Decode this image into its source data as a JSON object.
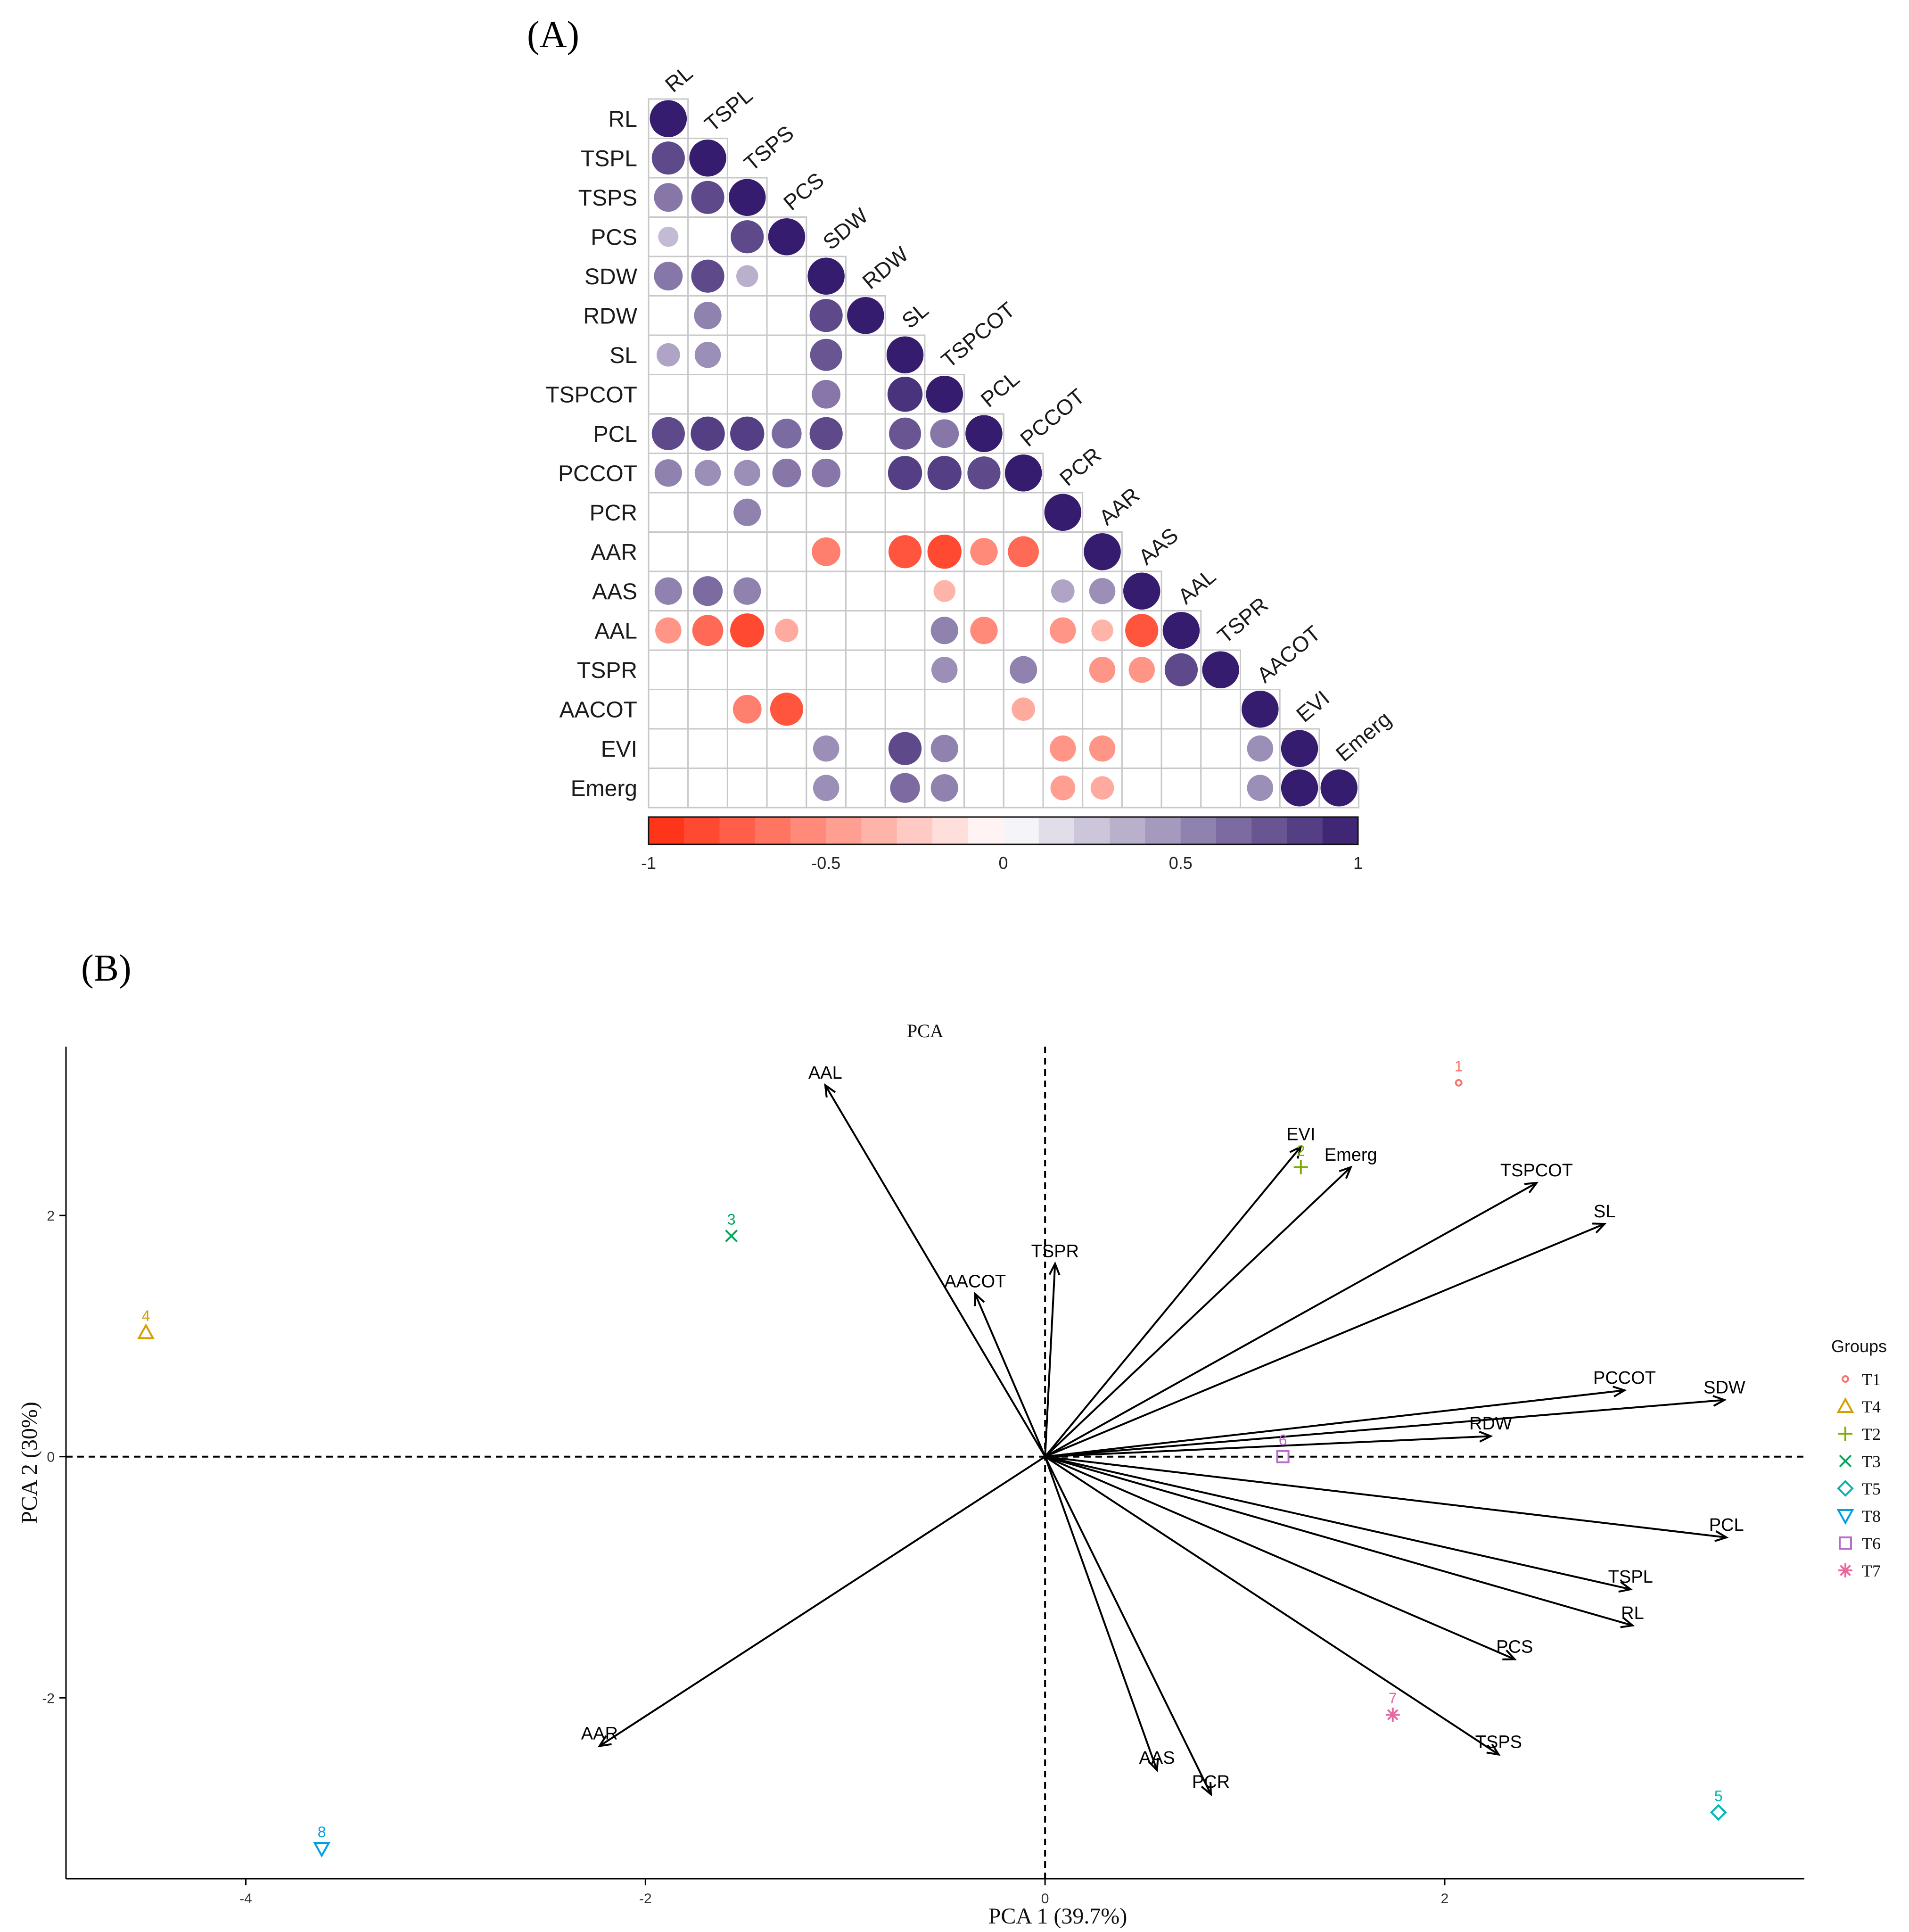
{
  "panels": {
    "a_label": "(A)",
    "b_label": "(B)"
  },
  "chart_data": [
    {
      "type": "heatmap",
      "variables": [
        "RL",
        "TSPL",
        "TSPS",
        "PCS",
        "SDW",
        "RDW",
        "SL",
        "TSPCOT",
        "PCL",
        "PCCOT",
        "PCR",
        "AAR",
        "AAS",
        "AAL",
        "TSPR",
        "AACOT",
        "EVI",
        "Emerg"
      ],
      "matrix": [
        [
          1
        ],
        [
          0.8,
          1
        ],
        [
          0.6,
          0.8,
          1
        ],
        [
          0.3,
          null,
          0.8,
          1
        ],
        [
          0.6,
          0.8,
          0.35,
          null,
          1
        ],
        [
          null,
          0.55,
          null,
          null,
          0.8,
          1
        ],
        [
          0.4,
          0.5,
          null,
          null,
          0.75,
          null,
          1
        ],
        [
          null,
          null,
          null,
          null,
          0.6,
          null,
          0.9,
          1
        ],
        [
          0.8,
          0.85,
          0.85,
          0.65,
          0.8,
          null,
          0.75,
          0.6,
          1
        ],
        [
          0.55,
          0.5,
          0.5,
          0.6,
          0.6,
          null,
          0.85,
          0.85,
          0.8,
          1
        ],
        [
          null,
          null,
          0.55,
          null,
          null,
          null,
          null,
          null,
          null,
          null,
          1
        ],
        [
          null,
          null,
          null,
          null,
          -0.6,
          null,
          -0.8,
          -0.85,
          -0.55,
          -0.7,
          null,
          1
        ],
        [
          0.55,
          0.65,
          0.55,
          null,
          null,
          null,
          null,
          -0.35,
          null,
          null,
          0.4,
          0.5,
          1
        ],
        [
          -0.5,
          -0.7,
          -0.85,
          -0.4,
          null,
          null,
          null,
          0.55,
          -0.55,
          null,
          -0.5,
          -0.35,
          -0.8,
          1
        ],
        [
          null,
          null,
          null,
          null,
          null,
          null,
          null,
          0.5,
          null,
          0.55,
          null,
          -0.5,
          -0.5,
          0.8,
          1
        ],
        [
          null,
          null,
          -0.6,
          -0.8,
          null,
          null,
          null,
          null,
          null,
          -0.4,
          null,
          null,
          null,
          null,
          null,
          1
        ],
        [
          null,
          null,
          null,
          null,
          0.5,
          null,
          0.8,
          0.55,
          null,
          null,
          -0.5,
          -0.5,
          null,
          null,
          null,
          0.5,
          1
        ],
        [
          null,
          null,
          null,
          null,
          0.5,
          null,
          0.65,
          0.55,
          null,
          null,
          -0.45,
          -0.4,
          null,
          null,
          null,
          0.5,
          1,
          1
        ]
      ],
      "colorbar": {
        "ticks": [
          "-1",
          "-0.5",
          "0",
          "0.5",
          "1"
        ],
        "range": [
          -1,
          1
        ],
        "neg_color": "#ff2a0d",
        "pos_color": "#361c6e"
      }
    },
    {
      "type": "scatter",
      "title": "PCA",
      "xlabel": "PCA 1 (39.7%)",
      "ylabel": "PCA 2 (30%)",
      "xlim": [
        -4.9,
        3.8
      ],
      "ylim": [
        -3.5,
        3.4
      ],
      "xticks": [
        "-4",
        "-2",
        "0",
        "2"
      ],
      "yticks": [
        "-2",
        "0",
        "2"
      ],
      "points": [
        {
          "id": "1",
          "group": "T1",
          "x": 2.07,
          "y": 3.1,
          "color": "#f8766d"
        },
        {
          "id": "2",
          "group": "T2",
          "x": 1.28,
          "y": 2.4,
          "color": "#7cae00"
        },
        {
          "id": "3",
          "group": "T3",
          "x": -1.57,
          "y": 1.83,
          "color": "#00a65a"
        },
        {
          "id": "4",
          "group": "T4",
          "x": -4.5,
          "y": 1.03,
          "color": "#d69f00"
        },
        {
          "id": "5",
          "group": "T5",
          "x": 3.37,
          "y": -2.95,
          "color": "#00b5b5"
        },
        {
          "id": "6",
          "group": "T6",
          "x": 1.19,
          "y": 0.0,
          "color": "#b76dc8"
        },
        {
          "id": "7",
          "group": "T7",
          "x": 1.74,
          "y": -2.14,
          "color": "#e7699f"
        },
        {
          "id": "8",
          "group": "T8",
          "x": -3.62,
          "y": -3.25,
          "color": "#00a0e0"
        }
      ],
      "vectors": [
        {
          "label": "AAL",
          "x": -1.1,
          "y": 3.08
        },
        {
          "label": "EVI",
          "x": 1.28,
          "y": 2.57
        },
        {
          "label": "Emerg",
          "x": 1.53,
          "y": 2.4
        },
        {
          "label": "TSPCOT",
          "x": 2.46,
          "y": 2.27
        },
        {
          "label": "SL",
          "x": 2.8,
          "y": 1.93
        },
        {
          "label": "TSPR",
          "x": 0.05,
          "y": 1.6
        },
        {
          "label": "AACOT",
          "x": -0.35,
          "y": 1.35
        },
        {
          "label": "PCCOT",
          "x": 2.9,
          "y": 0.55
        },
        {
          "label": "SDW",
          "x": 3.4,
          "y": 0.47
        },
        {
          "label": "RDW",
          "x": 2.23,
          "y": 0.17
        },
        {
          "label": "PCL",
          "x": 3.41,
          "y": -0.67
        },
        {
          "label": "TSPL",
          "x": 2.93,
          "y": -1.1
        },
        {
          "label": "RL",
          "x": 2.94,
          "y": -1.4
        },
        {
          "label": "PCS",
          "x": 2.35,
          "y": -1.68
        },
        {
          "label": "TSPS",
          "x": 2.27,
          "y": -2.47
        },
        {
          "label": "PCR",
          "x": 0.83,
          "y": -2.8
        },
        {
          "label": "AAS",
          "x": 0.56,
          "y": -2.6
        },
        {
          "label": "AAR",
          "x": -2.23,
          "y": -2.4
        }
      ],
      "legend": {
        "title": "Groups",
        "position": "right",
        "entries": [
          {
            "label": "T1",
            "color": "#f8766d",
            "shape": "circle"
          },
          {
            "label": "T4",
            "color": "#d69f00",
            "shape": "triangle"
          },
          {
            "label": "T2",
            "color": "#7cae00",
            "shape": "plus"
          },
          {
            "label": "T3",
            "color": "#00a65a",
            "shape": "cross"
          },
          {
            "label": "T5",
            "color": "#00b5b5",
            "shape": "diamond"
          },
          {
            "label": "T8",
            "color": "#00a0e0",
            "shape": "triangle-down"
          },
          {
            "label": "T6",
            "color": "#b76dc8",
            "shape": "square"
          },
          {
            "label": "T7",
            "color": "#e7699f",
            "shape": "star"
          }
        ]
      }
    }
  ]
}
